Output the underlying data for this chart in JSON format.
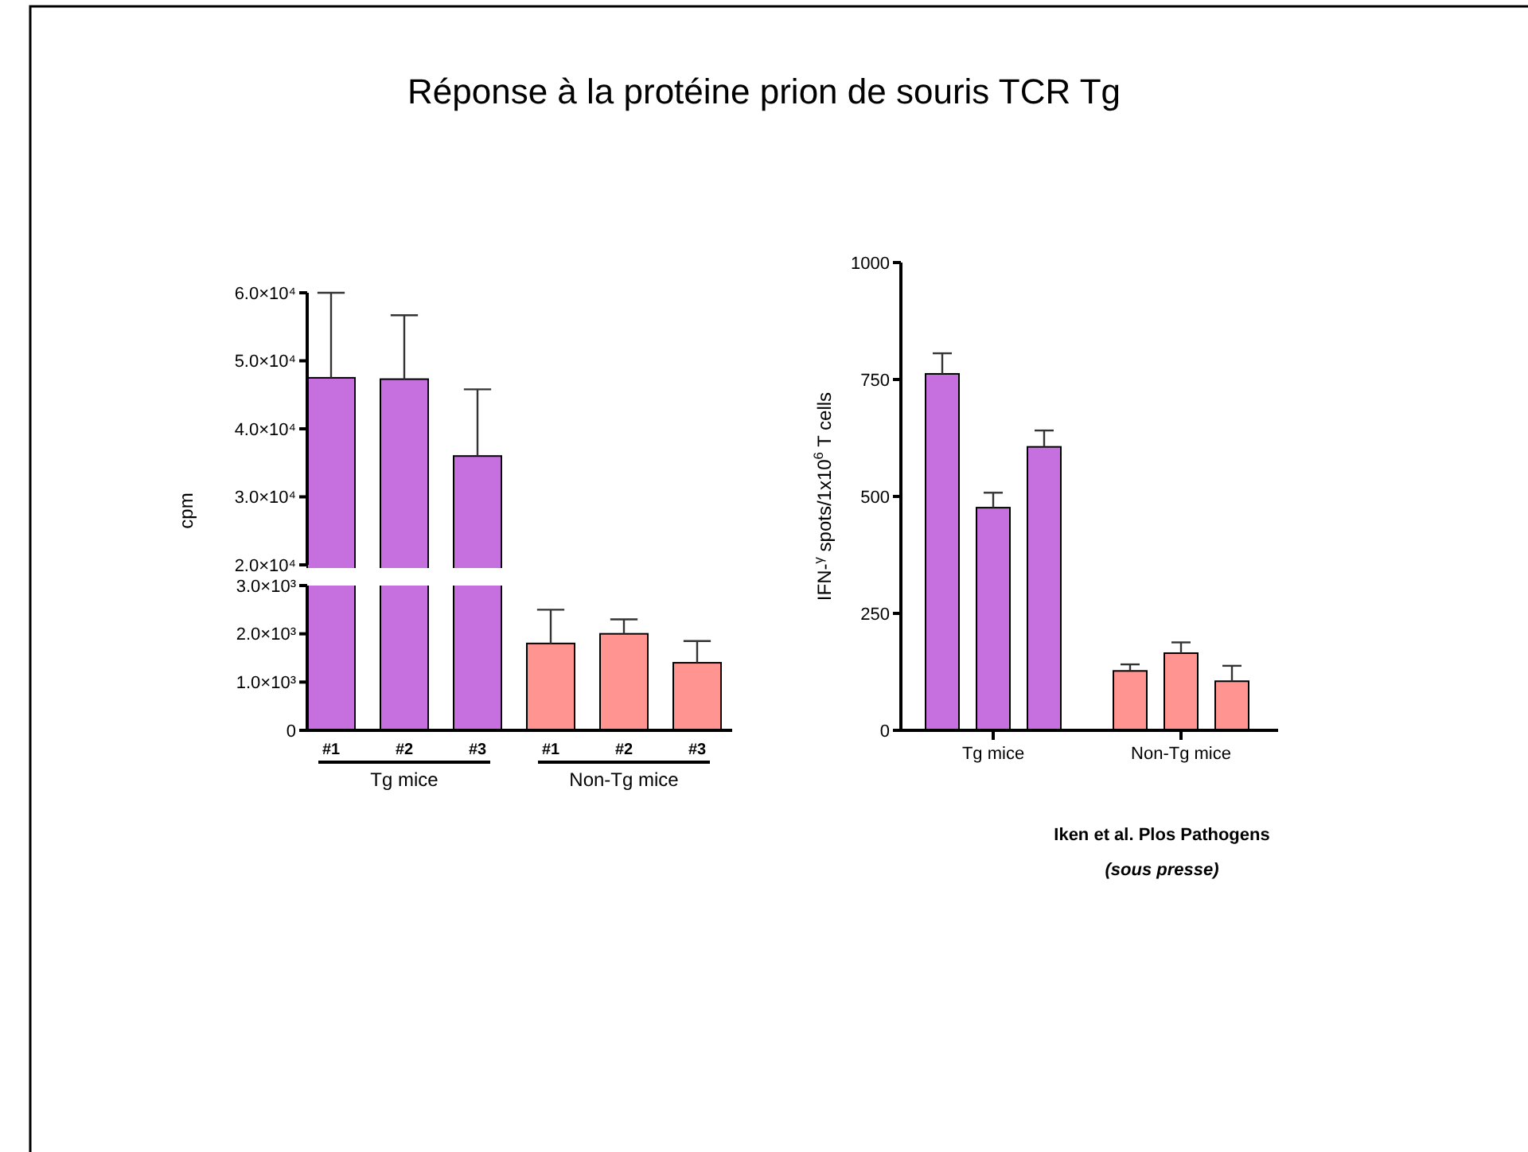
{
  "chart_data": [
    {
      "type": "bar",
      "title": "Réponse à la protéine prion de souris TCR Tg",
      "ylabel": "cpm",
      "categories": [
        null,
        null,
        null
      ],
      "values": [
        47500,
        47300,
        36000
      ],
      "errors": [
        12500,
        9400,
        9800
      ],
      "color": "#c66fdf",
      "ylim": [
        20000,
        60000
      ],
      "tick_labels": "y",
      "yticks": [
        {
          "value": 20000,
          "label": "2.0×10⁴"
        },
        {
          "value": 30000,
          "label": "3.0×10⁴"
        },
        {
          "value": 40000,
          "label": "4.0×10⁴"
        },
        {
          "value": 50000,
          "label": "5.0×10⁴"
        },
        {
          "value": 60000,
          "label": "6.0×10⁴"
        }
      ]
    },
    {
      "type": "bar",
      "categories": [
        "#1",
        "#2",
        "#3",
        "#1",
        "#2",
        "#3"
      ],
      "values": [
        null,
        null,
        null,
        1800,
        2000,
        1400
      ],
      "errors": [
        null,
        null,
        null,
        700,
        300,
        450
      ],
      "color": "#ff9490",
      "ylim": [
        0,
        3000
      ],
      "yticks": [
        0,
        {
          "value": 1000,
          "label": "1.0×10³"
        },
        {
          "value": 2000,
          "label": "2.0×10³"
        },
        {
          "value": 3000,
          "label": "3.0×10³"
        }
      ],
      "annotations": [
        "Tg mice",
        "Non-Tg mice"
      ]
    },
    {
      "type": "bar",
      "ylabel": "IFN-$^{γ}$ spots/1x10$^{6}$ T cells",
      "categories": [
        null,
        "Tg mice",
        null,
        null,
        "Non-Tg mice",
        null
      ],
      "values": [
        762,
        476,
        606,
        127,
        165,
        105
      ],
      "errors": [
        44,
        32,
        35,
        14,
        23,
        33
      ],
      "colors": [
        "#c66fdf",
        "#c66fdf",
        "#c66fdf",
        "#ff9490",
        "#ff9490",
        "#ff9490"
      ],
      "ylim": [
        0,
        1000
      ],
      "yticks": [
        0,
        250,
        500,
        750,
        1000
      ],
      "annotations": [
        "Iken et al. Plos Pathogens",
        "(sous presse)"
      ]
    }
  ]
}
